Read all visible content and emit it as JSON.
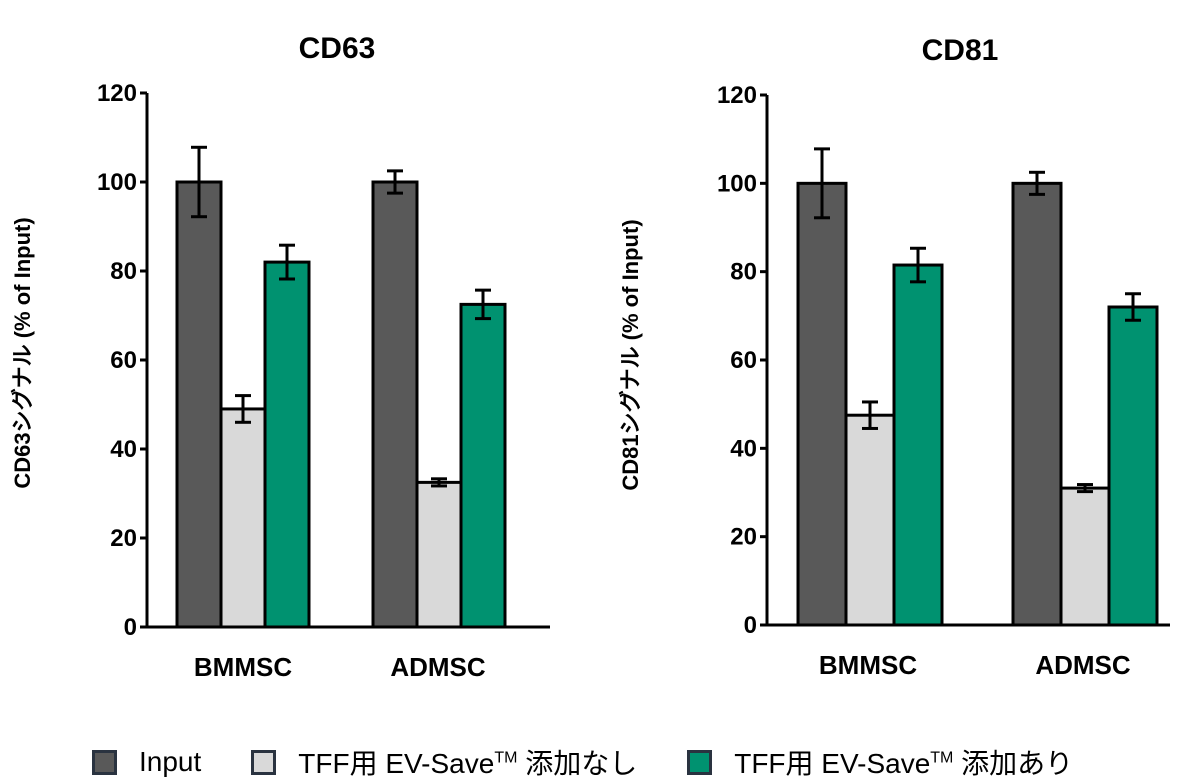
{
  "colors": {
    "input": "#595959",
    "no_additive": "#d9d9d9",
    "with_additive": "#009270",
    "outline": "#000000"
  },
  "legend": [
    {
      "label": "Input",
      "sup": "",
      "suffix": "",
      "color": "#595959"
    },
    {
      "label": "TFF用 EV-Save",
      "sup": "TM",
      "suffix": " 添加なし",
      "color": "#d9d9d9"
    },
    {
      "label": "TFF用 EV-Save",
      "sup": "TM",
      "suffix": " 添加あり",
      "color": "#009270"
    }
  ],
  "chart_data": [
    {
      "type": "bar",
      "title": "CD63",
      "ylabel": "CD63シグナル (% of Input)",
      "xlabel": "",
      "categories": [
        "BMMSC",
        "ADMSC"
      ],
      "ylim": [
        0,
        120
      ],
      "yticks": [
        0,
        20,
        40,
        60,
        80,
        100,
        120
      ],
      "series": [
        {
          "name": "Input",
          "values": [
            100,
            100
          ],
          "errors": [
            7.8,
            2.5
          ]
        },
        {
          "name": "TFF用 EV-SaveTM 添加なし",
          "values": [
            49,
            32.5
          ],
          "errors": [
            3,
            0.8
          ]
        },
        {
          "name": "TFF用 EV-SaveTM 添加あり",
          "values": [
            82,
            72.5
          ],
          "errors": [
            3.8,
            3.2
          ]
        }
      ]
    },
    {
      "type": "bar",
      "title": "CD81",
      "ylabel": "CD81シグナル (% of Input)",
      "xlabel": "",
      "categories": [
        "BMMSC",
        "ADMSC"
      ],
      "ylim": [
        0,
        120
      ],
      "yticks": [
        0,
        20,
        40,
        60,
        80,
        100,
        120
      ],
      "series": [
        {
          "name": "Input",
          "values": [
            100,
            100
          ],
          "errors": [
            7.8,
            2.5
          ]
        },
        {
          "name": "TFF用 EV-SaveTM 添加なし",
          "values": [
            47.5,
            31
          ],
          "errors": [
            3,
            0.8
          ]
        },
        {
          "name": "TFF用 EV-SaveTM 添加あり",
          "values": [
            81.5,
            72
          ],
          "errors": [
            3.8,
            3
          ]
        }
      ]
    }
  ]
}
